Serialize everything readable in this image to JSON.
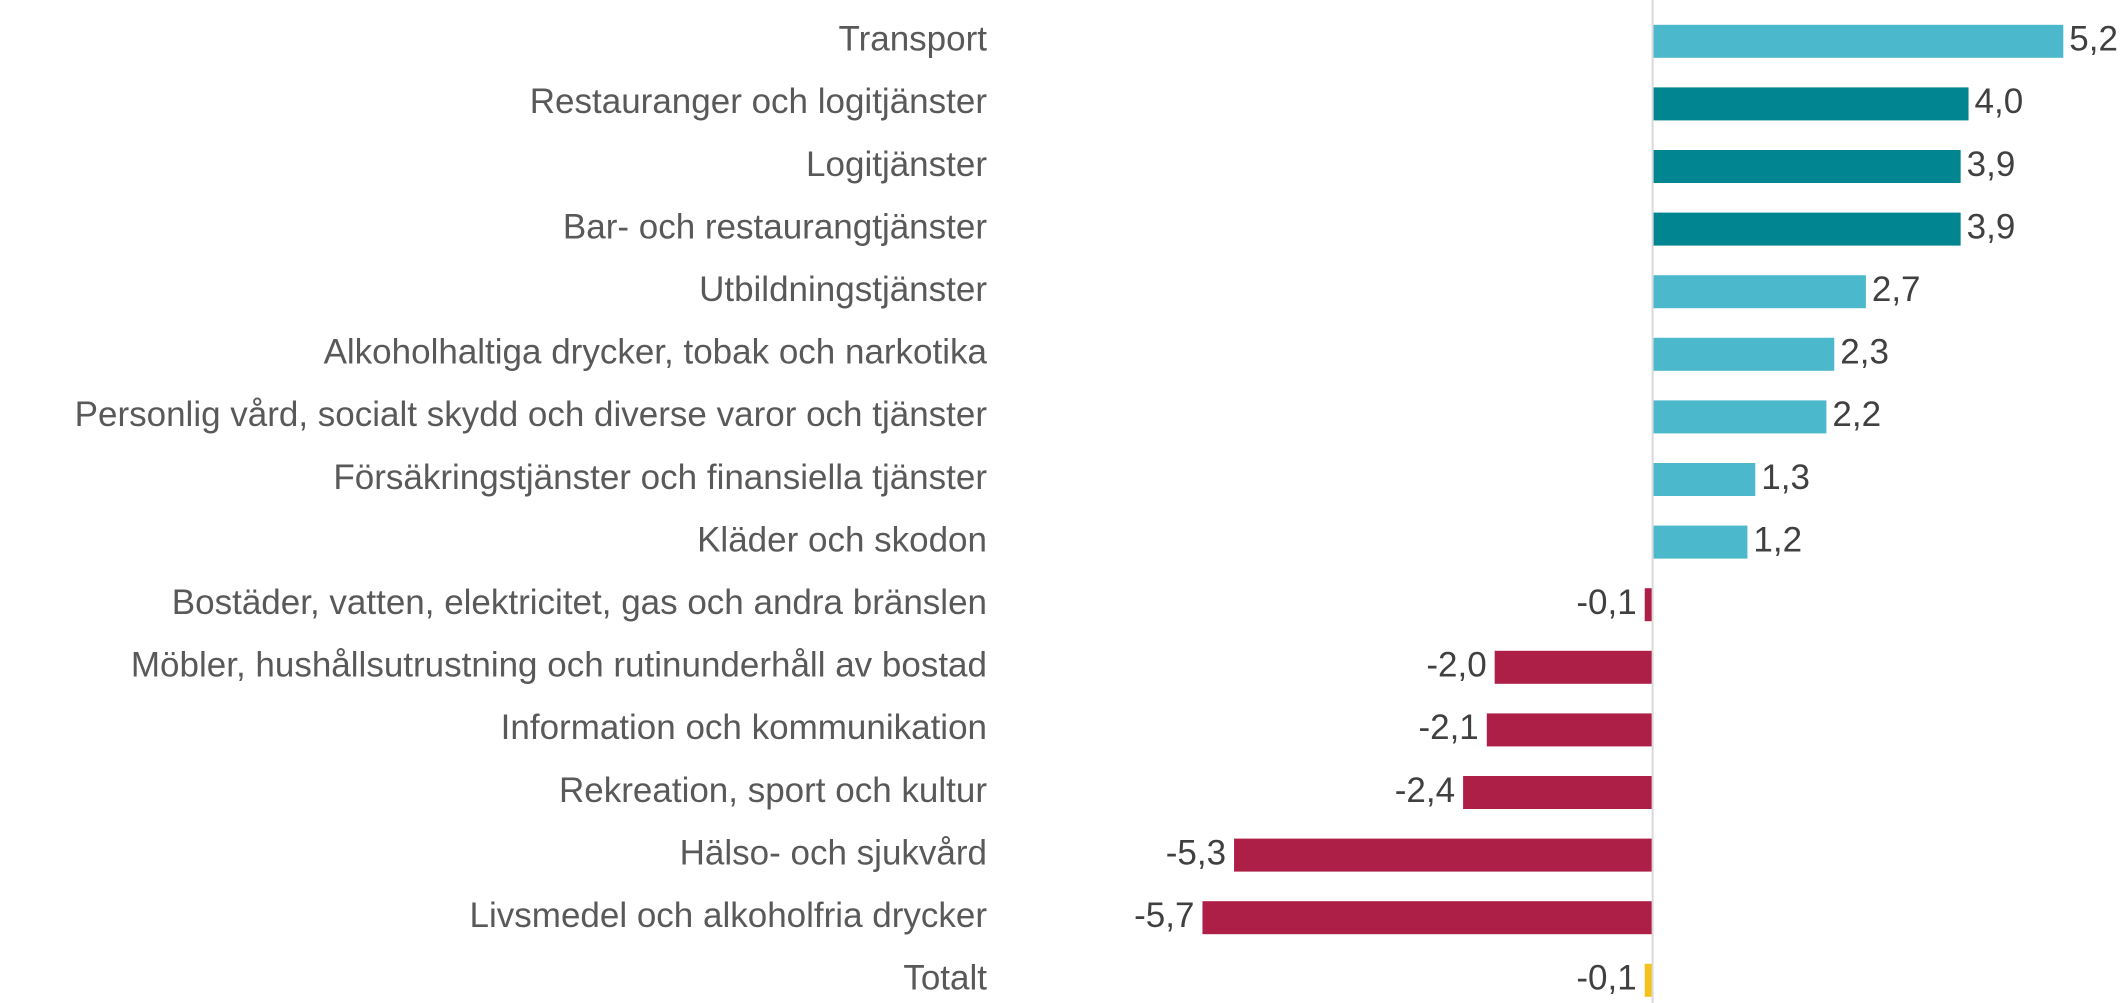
{
  "chart_data": {
    "type": "barh",
    "categories": [
      "Transport",
      "Restauranger och logitjänster",
      "Logitjänster",
      "Bar- och restaurangtjänster",
      "Utbildningstjänster",
      "Alkoholhaltiga drycker, tobak och narkotika",
      "Personlig vård, socialt skydd och diverse varor och tjänster",
      "Försäkringstjänster och finansiella tjänster",
      "Kläder och skodon",
      "Bostäder, vatten, elektricitet, gas och andra bränslen",
      "Möbler, hushållsutrustning och rutinunderhåll av bostad",
      "Information och kommunikation",
      "Rekreation, sport och kultur",
      "Hälso- och sjukvård",
      "Livsmedel och alkoholfria drycker",
      "Totalt"
    ],
    "values": [
      5.2,
      4.0,
      3.9,
      3.9,
      2.7,
      2.3,
      2.2,
      1.3,
      1.2,
      -0.1,
      -2.0,
      -2.1,
      -2.4,
      -5.3,
      -5.7,
      -0.1
    ],
    "value_labels": [
      "5,2",
      "4,0",
      "3,9",
      "3,9",
      "2,7",
      "2,3",
      "2,2",
      "1,3",
      "1,2",
      "-0,1",
      "-2,0",
      "-2,1",
      "-2,4",
      "-5,3",
      "-5,7",
      "-0,1"
    ],
    "colors": [
      "#4bb8cb",
      "#008591",
      "#008591",
      "#008591",
      "#4bb8cb",
      "#4bb8cb",
      "#4bb8cb",
      "#4bb8cb",
      "#4bb8cb",
      "#ae1f47",
      "#ae1f47",
      "#ae1f47",
      "#ae1f47",
      "#ae1f47",
      "#ae1f47",
      "#f5c21b"
    ],
    "xlim": [
      -7.2,
      5.5
    ]
  }
}
